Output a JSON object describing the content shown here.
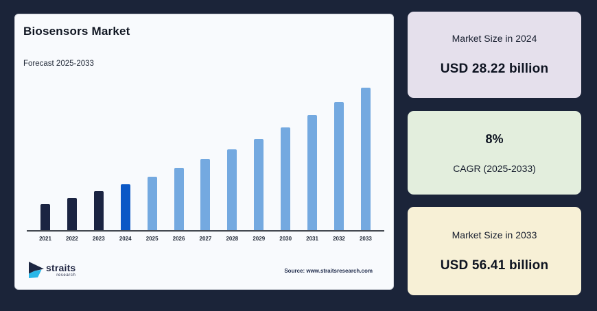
{
  "page": {
    "background": "#1b2439"
  },
  "main_card": {
    "background": "#f8fafd",
    "title": "Biosensors Market",
    "subtitle": "Forecast 2025-2033",
    "source_text": "Source: www.straitsresearch.com",
    "logo": {
      "brand": "straits",
      "brand_sub": "research",
      "icon": "straits-arrow-icon",
      "icon_colors": {
        "dark": "#1d2742",
        "cyan": "#2ab7e8"
      }
    }
  },
  "chart_data": {
    "type": "bar",
    "title": "Biosensors Market",
    "subtitle": "Forecast 2025-2033",
    "unit": "USD billion",
    "categories": [
      "2021",
      "2022",
      "2023",
      "2024",
      "2025",
      "2026",
      "2027",
      "2028",
      "2029",
      "2030",
      "2031",
      "2032",
      "2033"
    ],
    "values": [
      22.4,
      24.19,
      26.13,
      28.22,
      30.48,
      32.92,
      35.55,
      38.39,
      41.47,
      44.78,
      48.37,
      52.24,
      56.41
    ],
    "labeled_values": {
      "2024": 28.22,
      "2033": 56.41
    },
    "cagr_percent": 8,
    "cagr_period": "2025-2033",
    "segments": [
      "historical",
      "historical",
      "historical",
      "base_year",
      "forecast",
      "forecast",
      "forecast",
      "forecast",
      "forecast",
      "forecast",
      "forecast",
      "forecast",
      "forecast"
    ],
    "colors": {
      "historical": "#1b2442",
      "base_year": "#0b58c6",
      "forecast": "#74a9e0"
    },
    "y_axis_min": 14.8,
    "grid": false,
    "legend": false,
    "x_axis_line_color": "#42474f"
  },
  "side_cards": [
    {
      "label": "Market Size in 2024",
      "value": "USD 28.22 billion",
      "background": "#e5e0ec"
    },
    {
      "label": "CAGR (2025-2033)",
      "value": "8%",
      "background": "#e3eedd"
    },
    {
      "label": "Market Size in 2033",
      "value": "USD 56.41 billion",
      "background": "#f7f0d6"
    }
  ]
}
